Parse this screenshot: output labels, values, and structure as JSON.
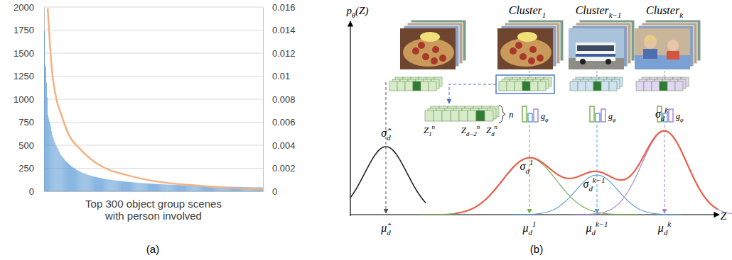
{
  "chart_data": {
    "type": "bar",
    "title": "(a)",
    "xlabel": "Top 300 object group scenes\nwith person involved",
    "xlim": [
      0,
      300
    ],
    "ylim": [
      0,
      2000
    ],
    "yticks": [
      0,
      250,
      500,
      750,
      1000,
      1250,
      1500,
      1750,
      2000
    ],
    "y2lim": [
      0,
      0.016
    ],
    "y2ticks": [
      0,
      0.002,
      0.004,
      0.006,
      0.008,
      0.01,
      0.012,
      0.014,
      0.016
    ],
    "grid": true,
    "tick_labels": "y",
    "series": [
      {
        "type": "bar",
        "color": "#5b9bd5",
        "values": [
          1740,
          1370,
          1350,
          1180,
          1020,
          830,
          790,
          760,
          730,
          700,
          650,
          610,
          590,
          560,
          540,
          520,
          500,
          480,
          470,
          450,
          430,
          420,
          400,
          390,
          380,
          370,
          360,
          350,
          340,
          330,
          320,
          315,
          305,
          300,
          290,
          285,
          280,
          270,
          265,
          260,
          255,
          250,
          245,
          240,
          235,
          230,
          225,
          222,
          218,
          215,
          210,
          206,
          203,
          200,
          196,
          193,
          190,
          187,
          184,
          181,
          178,
          176,
          173,
          171,
          169,
          166,
          164,
          162,
          160,
          158,
          156,
          154,
          152,
          150,
          148,
          147,
          145,
          143,
          142,
          140,
          139,
          137,
          136,
          134,
          133,
          132,
          130,
          129,
          128,
          127,
          126,
          124,
          123,
          122,
          121,
          120,
          119,
          118,
          117,
          116,
          115,
          114,
          113,
          112,
          111,
          110,
          109,
          108,
          108,
          107,
          106,
          105,
          104,
          104,
          103,
          102,
          101,
          100,
          100,
          99,
          98,
          98,
          97,
          96,
          96,
          95,
          94,
          94,
          93,
          92,
          92,
          91,
          91,
          90,
          89,
          89,
          88,
          88,
          87,
          87,
          86,
          86,
          85,
          85,
          84,
          84,
          83,
          83,
          82,
          82,
          81,
          81,
          80,
          80,
          79,
          79,
          78,
          78,
          78,
          77,
          77,
          76,
          76,
          75,
          75,
          75,
          74,
          74,
          73,
          73,
          73,
          72,
          72,
          71,
          71,
          71,
          70,
          70,
          70,
          69,
          69,
          69,
          68,
          68,
          68,
          67,
          67,
          67,
          66,
          66,
          66,
          65,
          65,
          65,
          64,
          64,
          64,
          63,
          63,
          63,
          63,
          62,
          62,
          62,
          61,
          61,
          61,
          61,
          60,
          60,
          60,
          59,
          59,
          59,
          59,
          58,
          58,
          58,
          58,
          57,
          57,
          57,
          57,
          56,
          56,
          56,
          56,
          55,
          55,
          55,
          55,
          55,
          54,
          54,
          54,
          54,
          53,
          53,
          53,
          53,
          53,
          52,
          52,
          52,
          52,
          52,
          51,
          51,
          51,
          51,
          51,
          50,
          50,
          50,
          50,
          50,
          49,
          49,
          49,
          49,
          49,
          49,
          48,
          48,
          48,
          48,
          48,
          47,
          47,
          47,
          47,
          47,
          47,
          46,
          46,
          46,
          46,
          46,
          46,
          45,
          45,
          45,
          45,
          45,
          45,
          44,
          44,
          44,
          44,
          44,
          44,
          44,
          43,
          43,
          43,
          43,
          43,
          43,
          42,
          42
        ]
      },
      {
        "type": "line",
        "axis": "y2",
        "color": "#f4b183",
        "x": [
          5,
          8,
          11,
          15,
          25,
          34,
          49,
          64,
          84,
          108,
          133,
          172,
          211,
          251,
          300
        ],
        "values": [
          0.0159,
          0.0128,
          0.0104,
          0.0086,
          0.0064,
          0.0049,
          0.0037,
          0.0028,
          0.002,
          0.0015,
          0.0011,
          0.0007,
          0.0005,
          0.0003,
          0.0002
        ]
      }
    ]
  },
  "diagram": {
    "panel_label": "(b)",
    "y_axis_label": {
      "base": "p",
      "sub": "θ",
      "tail": "(Z)"
    },
    "x_axis_label": "Z",
    "global_sigma": {
      "base": "σ̂",
      "sub": "d"
    },
    "global_mu": {
      "base": "μ̂",
      "sub": "d"
    },
    "feature_vector": {
      "cells": [
        {
          "base": "Z",
          "sub": "1",
          "sup": "n"
        },
        {
          "base": "Z",
          "sub": "d−2",
          "sup": "n"
        },
        {
          "base": "Z",
          "sub": "d",
          "sup": "n"
        }
      ],
      "depth": "n"
    },
    "clusters": [
      {
        "label": {
          "base": "Cluster",
          "sub": "1"
        },
        "mapping": {
          "base": "g",
          "sub": "φ"
        },
        "sigma": {
          "base": "σ",
          "sub": "d",
          "sup": "1"
        },
        "mu": {
          "base": "μ",
          "sub": "d",
          "sup": "1"
        }
      },
      {
        "label": {
          "base": "Cluster",
          "sub": "k−1"
        },
        "mapping": {
          "base": "g",
          "sub": "φ"
        },
        "sigma": {
          "base": "σ",
          "sub": "d",
          "sup": "k−1"
        },
        "mu": {
          "base": "μ",
          "sub": "d",
          "sup": "k−1"
        }
      },
      {
        "label": {
          "base": "Cluster",
          "sub": "k"
        },
        "mapping": {
          "base": "g",
          "sub": "φ"
        },
        "sigma": {
          "base": "σ",
          "sub": "d",
          "sup": "k"
        },
        "mu": {
          "base": "μ",
          "sub": "d",
          "sup": "k"
        }
      }
    ]
  }
}
